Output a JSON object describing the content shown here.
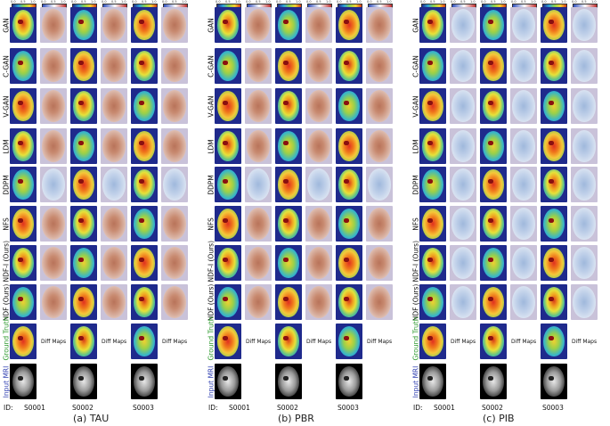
{
  "row_labels": [
    "GAN",
    "C-GAN",
    "V-GAN",
    "LDM",
    "DDPM",
    "NFS",
    "NDF-I (Ours)",
    "NDF (Ours)",
    "Ground Truth",
    "Input MRI"
  ],
  "row_label_colors": {
    "Ground Truth": "#2e9a2e",
    "Input MRI": "#2f3fb0",
    "default": "#111111"
  },
  "colorbar_ticks": [
    "0.0",
    "0.5",
    "1.0"
  ],
  "diff_label": "Diff Maps",
  "id_prefix": "ID:",
  "subjects": [
    "S0001",
    "S0002",
    "S0003"
  ],
  "panels": [
    {
      "caption": "(a) TAU"
    },
    {
      "caption": "(b) PBR"
    },
    {
      "caption": "(c) PIB"
    }
  ]
}
